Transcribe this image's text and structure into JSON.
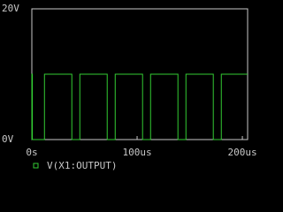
{
  "chart_data": {
    "type": "line",
    "x": [
      0,
      0,
      0.5,
      0.5,
      12,
      12,
      38,
      38,
      45.6,
      45.6,
      71.6,
      71.6,
      79.2,
      79.2,
      105.2,
      105.2,
      112.8,
      112.8,
      138.8,
      138.8,
      146.4,
      146.4,
      172.4,
      172.4,
      180,
      180,
      205
    ],
    "series": [
      {
        "name": "V(X1:OUTPUT)",
        "color": "#33cc33",
        "values": [
          0,
          10,
          10,
          0,
          0,
          10,
          10,
          0,
          0,
          10,
          10,
          0,
          0,
          10,
          10,
          0,
          0,
          10,
          10,
          0,
          0,
          10,
          10,
          0,
          0,
          10,
          10
        ]
      }
    ],
    "xlim": [
      0,
      205
    ],
    "ylim": [
      0,
      20
    ],
    "xticks": [
      {
        "value": 0,
        "label": "0s"
      },
      {
        "value": 100,
        "label": "100us"
      },
      {
        "value": 200,
        "label": "200us"
      }
    ],
    "yticks": [
      {
        "value": 0,
        "label": "0V"
      },
      {
        "value": 20,
        "label": "20V"
      }
    ]
  }
}
